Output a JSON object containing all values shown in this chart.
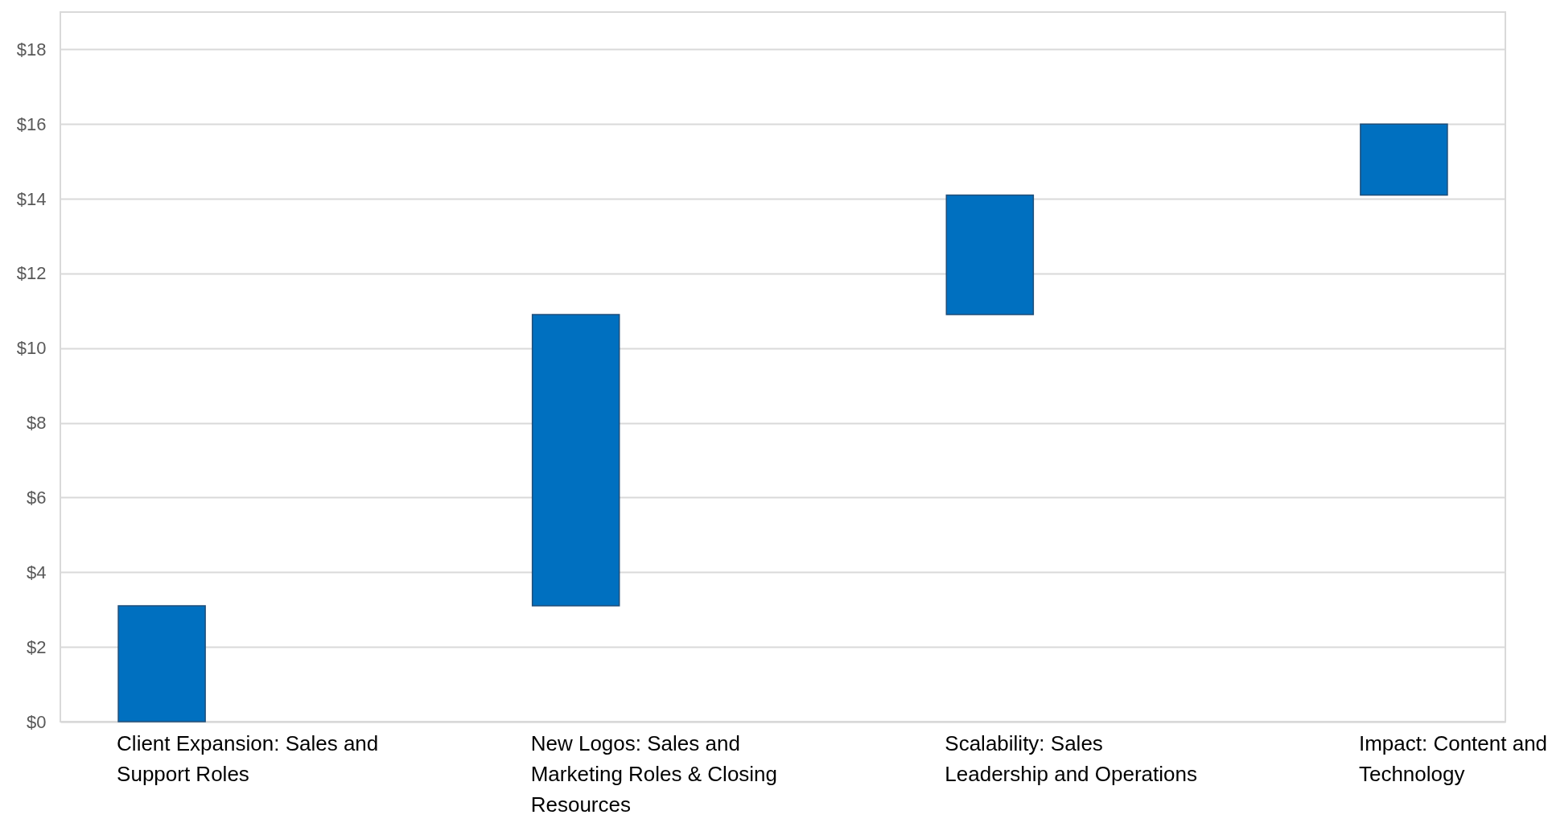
{
  "chart_data": {
    "type": "bar",
    "categories": [
      "Client Expansion: Sales and Support Roles",
      "New Logos: Sales and Marketing Roles & Closing Resources",
      "Scalability: Sales Leadership and Operations",
      "Impact: Content and Technology"
    ],
    "values": [
      3.1,
      7.8,
      3.2,
      1.9
    ],
    "base": [
      0,
      3.1,
      10.9,
      14.1
    ],
    "color": "#0070c0",
    "ylim": [
      0,
      19
    ],
    "yticks": [
      {
        "value": 0,
        "label": "$0"
      },
      {
        "value": 2,
        "label": "$2"
      },
      {
        "value": 4,
        "label": "$4"
      },
      {
        "value": 6,
        "label": "$6"
      },
      {
        "value": 8,
        "label": "$8"
      },
      {
        "value": 10,
        "label": "$10"
      },
      {
        "value": 12,
        "label": "$12"
      },
      {
        "value": 14,
        "label": "$14"
      },
      {
        "value": 16,
        "label": "$16"
      },
      {
        "value": 18,
        "label": "$18"
      }
    ],
    "grid": "y"
  }
}
